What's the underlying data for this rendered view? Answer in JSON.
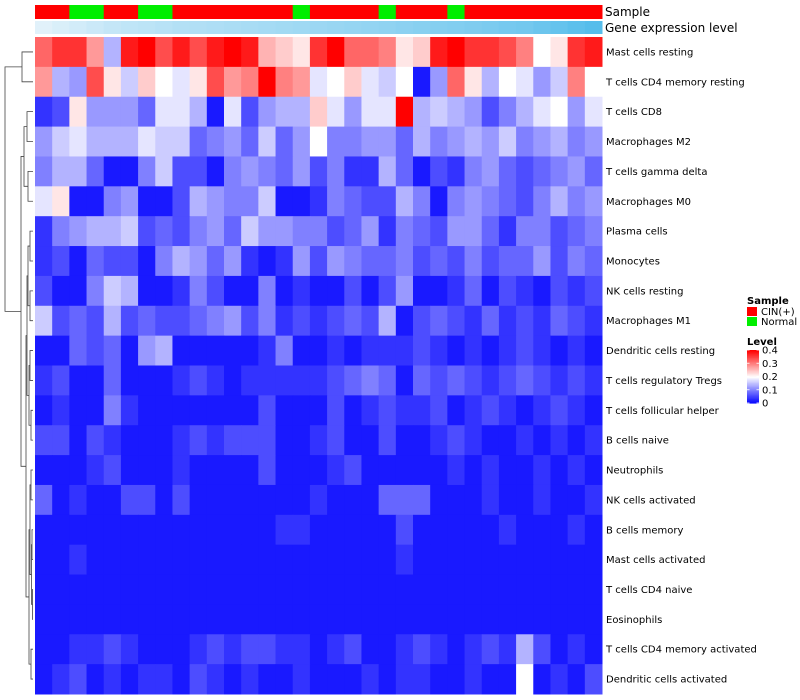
{
  "chart_data": {
    "type": "heatmap",
    "title": "",
    "annotation_labels": {
      "sample": "Sample",
      "gene_expression": "Gene expression level"
    },
    "sample_groups": [
      "CIN(+)",
      "CIN(+)",
      "Normal",
      "Normal",
      "CIN(+)",
      "CIN(+)",
      "Normal",
      "Normal",
      "CIN(+)",
      "CIN(+)",
      "CIN(+)",
      "CIN(+)",
      "CIN(+)",
      "CIN(+)",
      "CIN(+)",
      "Normal",
      "CIN(+)",
      "CIN(+)",
      "CIN(+)",
      "CIN(+)",
      "Normal",
      "CIN(+)",
      "CIN(+)",
      "CIN(+)",
      "Normal",
      "CIN(+)",
      "CIN(+)",
      "CIN(+)",
      "CIN(+)",
      "CIN(+)",
      "CIN(+)",
      "CIN(+)",
      "CIN(+)"
    ],
    "gene_expression_level": [
      0.05,
      0.1,
      0.15,
      0.2,
      0.25,
      0.28,
      0.3,
      0.33,
      0.36,
      0.38,
      0.4,
      0.42,
      0.44,
      0.46,
      0.48,
      0.5,
      0.52,
      0.54,
      0.56,
      0.58,
      0.6,
      0.63,
      0.66,
      0.68,
      0.7,
      0.72,
      0.75,
      0.78,
      0.8,
      0.85,
      0.9,
      0.95,
      1.0
    ],
    "rows": [
      "Mast cells resting",
      "T cells CD4 memory resting",
      "T cells CD8",
      "Macrophages M2",
      "T cells gamma delta",
      "Macrophages M0",
      "Plasma cells",
      "Monocytes",
      "NK cells resting",
      "Macrophages M1",
      "Dendritic cells resting",
      "T cells regulatory  Tregs",
      "T cells follicular helper",
      "B cells naive",
      "Neutrophils",
      "NK cells activated",
      "B cells memory",
      "Mast cells activated",
      "T cells CD4 naive",
      "Eosinophils",
      "T cells CD4 memory activated",
      "Dendritic cells activated"
    ],
    "values": [
      [
        0.32,
        0.36,
        0.36,
        0.28,
        0.14,
        0.38,
        0.4,
        0.34,
        0.38,
        0.34,
        0.38,
        0.4,
        0.38,
        0.26,
        0.24,
        0.22,
        0.36,
        0.4,
        0.32,
        0.32,
        0.3,
        0.22,
        0.24,
        0.38,
        0.4,
        0.36,
        0.36,
        0.34,
        0.3,
        0.2,
        0.22,
        0.36,
        0.38
      ],
      [
        0.28,
        0.14,
        0.12,
        0.34,
        0.22,
        0.16,
        0.24,
        0.2,
        0.18,
        0.22,
        0.34,
        0.28,
        0.3,
        0.4,
        0.3,
        0.28,
        0.18,
        0.2,
        0.24,
        0.18,
        0.16,
        0.2,
        0.02,
        0.12,
        0.32,
        0.22,
        0.14,
        0.2,
        0.18,
        0.12,
        0.16,
        0.3,
        0.2
      ],
      [
        0.04,
        0.06,
        0.22,
        0.12,
        0.12,
        0.12,
        0.08,
        0.18,
        0.18,
        0.14,
        0.02,
        0.18,
        0.06,
        0.12,
        0.14,
        0.14,
        0.24,
        0.18,
        0.12,
        0.18,
        0.18,
        0.4,
        0.14,
        0.16,
        0.14,
        0.12,
        0.06,
        0.1,
        0.14,
        0.18,
        0.2,
        0.12,
        0.18
      ],
      [
        0.12,
        0.16,
        0.18,
        0.14,
        0.14,
        0.14,
        0.18,
        0.16,
        0.16,
        0.08,
        0.1,
        0.12,
        0.08,
        0.16,
        0.08,
        0.12,
        0.2,
        0.1,
        0.1,
        0.12,
        0.12,
        0.08,
        0.14,
        0.1,
        0.12,
        0.14,
        0.12,
        0.16,
        0.1,
        0.12,
        0.14,
        0.1,
        0.12
      ],
      [
        0.1,
        0.14,
        0.14,
        0.08,
        0.02,
        0.02,
        0.1,
        0.16,
        0.06,
        0.06,
        0.02,
        0.1,
        0.12,
        0.1,
        0.08,
        0.12,
        0.06,
        0.1,
        0.04,
        0.04,
        0.14,
        0.08,
        0.02,
        0.06,
        0.04,
        0.1,
        0.12,
        0.08,
        0.06,
        0.08,
        0.1,
        0.12,
        0.08
      ],
      [
        0.18,
        0.22,
        0.02,
        0.02,
        0.1,
        0.12,
        0.02,
        0.02,
        0.06,
        0.14,
        0.12,
        0.1,
        0.1,
        0.16,
        0.02,
        0.02,
        0.04,
        0.1,
        0.08,
        0.06,
        0.06,
        0.14,
        0.1,
        0.02,
        0.1,
        0.12,
        0.1,
        0.08,
        0.06,
        0.1,
        0.14,
        0.1,
        0.12
      ],
      [
        0.04,
        0.1,
        0.12,
        0.14,
        0.14,
        0.16,
        0.06,
        0.08,
        0.06,
        0.1,
        0.12,
        0.08,
        0.16,
        0.12,
        0.12,
        0.1,
        0.1,
        0.06,
        0.08,
        0.12,
        0.04,
        0.1,
        0.08,
        0.06,
        0.12,
        0.12,
        0.08,
        0.04,
        0.1,
        0.1,
        0.06,
        0.08,
        0.1
      ],
      [
        0.04,
        0.06,
        0.02,
        0.08,
        0.06,
        0.06,
        0.02,
        0.1,
        0.14,
        0.12,
        0.08,
        0.12,
        0.04,
        0.02,
        0.04,
        0.12,
        0.06,
        0.12,
        0.1,
        0.08,
        0.08,
        0.1,
        0.06,
        0.08,
        0.06,
        0.1,
        0.06,
        0.08,
        0.08,
        0.12,
        0.06,
        0.1,
        0.08
      ],
      [
        0.06,
        0.02,
        0.02,
        0.1,
        0.16,
        0.14,
        0.02,
        0.02,
        0.04,
        0.1,
        0.06,
        0.02,
        0.02,
        0.1,
        0.02,
        0.04,
        0.02,
        0.02,
        0.06,
        0.02,
        0.06,
        0.12,
        0.02,
        0.02,
        0.04,
        0.08,
        0.02,
        0.06,
        0.04,
        0.02,
        0.06,
        0.04,
        0.06
      ],
      [
        0.16,
        0.06,
        0.08,
        0.06,
        0.14,
        0.06,
        0.08,
        0.06,
        0.06,
        0.08,
        0.1,
        0.12,
        0.06,
        0.1,
        0.04,
        0.06,
        0.04,
        0.06,
        0.08,
        0.06,
        0.14,
        0.02,
        0.06,
        0.08,
        0.06,
        0.04,
        0.08,
        0.04,
        0.06,
        0.04,
        0.08,
        0.06,
        0.04
      ],
      [
        0.02,
        0.02,
        0.08,
        0.06,
        0.08,
        0.02,
        0.12,
        0.14,
        0.02,
        0.02,
        0.02,
        0.02,
        0.02,
        0.04,
        0.1,
        0.02,
        0.02,
        0.04,
        0.02,
        0.04,
        0.04,
        0.04,
        0.06,
        0.04,
        0.02,
        0.04,
        0.02,
        0.04,
        0.06,
        0.04,
        0.02,
        0.04,
        0.02
      ],
      [
        0.04,
        0.06,
        0.02,
        0.02,
        0.08,
        0.02,
        0.02,
        0.02,
        0.04,
        0.06,
        0.04,
        0.02,
        0.04,
        0.04,
        0.04,
        0.04,
        0.04,
        0.06,
        0.08,
        0.1,
        0.08,
        0.02,
        0.08,
        0.06,
        0.08,
        0.06,
        0.04,
        0.06,
        0.08,
        0.06,
        0.04,
        0.06,
        0.04
      ],
      [
        0.02,
        0.04,
        0.02,
        0.02,
        0.1,
        0.04,
        0.02,
        0.02,
        0.02,
        0.02,
        0.02,
        0.02,
        0.02,
        0.06,
        0.02,
        0.02,
        0.02,
        0.06,
        0.02,
        0.04,
        0.06,
        0.04,
        0.04,
        0.06,
        0.02,
        0.04,
        0.06,
        0.04,
        0.02,
        0.04,
        0.06,
        0.04,
        0.02
      ],
      [
        0.06,
        0.06,
        0.02,
        0.06,
        0.04,
        0.02,
        0.02,
        0.02,
        0.04,
        0.06,
        0.04,
        0.06,
        0.06,
        0.06,
        0.02,
        0.02,
        0.04,
        0.06,
        0.02,
        0.02,
        0.06,
        0.02,
        0.02,
        0.04,
        0.06,
        0.04,
        0.02,
        0.02,
        0.04,
        0.02,
        0.04,
        0.02,
        0.04
      ],
      [
        0.02,
        0.02,
        0.02,
        0.04,
        0.06,
        0.02,
        0.02,
        0.02,
        0.04,
        0.02,
        0.02,
        0.02,
        0.02,
        0.06,
        0.02,
        0.02,
        0.02,
        0.04,
        0.06,
        0.02,
        0.02,
        0.02,
        0.02,
        0.02,
        0.04,
        0.02,
        0.04,
        0.02,
        0.02,
        0.04,
        0.02,
        0.04,
        0.02
      ],
      [
        0.08,
        0.02,
        0.04,
        0.02,
        0.02,
        0.06,
        0.06,
        0.02,
        0.06,
        0.02,
        0.02,
        0.02,
        0.02,
        0.02,
        0.02,
        0.02,
        0.04,
        0.02,
        0.02,
        0.02,
        0.08,
        0.08,
        0.08,
        0.02,
        0.02,
        0.02,
        0.04,
        0.02,
        0.02,
        0.04,
        0.02,
        0.02,
        0.04
      ],
      [
        0.02,
        0.02,
        0.02,
        0.02,
        0.02,
        0.02,
        0.02,
        0.02,
        0.02,
        0.02,
        0.02,
        0.02,
        0.02,
        0.02,
        0.04,
        0.04,
        0.02,
        0.02,
        0.02,
        0.02,
        0.02,
        0.06,
        0.02,
        0.02,
        0.02,
        0.02,
        0.02,
        0.04,
        0.02,
        0.02,
        0.02,
        0.04,
        0.02
      ],
      [
        0.02,
        0.02,
        0.04,
        0.02,
        0.02,
        0.02,
        0.02,
        0.02,
        0.02,
        0.02,
        0.02,
        0.02,
        0.02,
        0.02,
        0.02,
        0.02,
        0.02,
        0.02,
        0.02,
        0.02,
        0.02,
        0.04,
        0.02,
        0.02,
        0.02,
        0.02,
        0.02,
        0.02,
        0.02,
        0.02,
        0.02,
        0.02,
        0.02
      ],
      [
        0.02,
        0.02,
        0.02,
        0.02,
        0.02,
        0.02,
        0.02,
        0.02,
        0.02,
        0.02,
        0.02,
        0.02,
        0.02,
        0.02,
        0.02,
        0.02,
        0.02,
        0.02,
        0.02,
        0.02,
        0.02,
        0.02,
        0.02,
        0.02,
        0.02,
        0.02,
        0.02,
        0.02,
        0.02,
        0.02,
        0.02,
        0.02,
        0.02
      ],
      [
        0.02,
        0.02,
        0.02,
        0.02,
        0.02,
        0.02,
        0.02,
        0.02,
        0.02,
        0.02,
        0.02,
        0.02,
        0.02,
        0.02,
        0.02,
        0.02,
        0.02,
        0.02,
        0.02,
        0.02,
        0.02,
        0.02,
        0.02,
        0.02,
        0.02,
        0.02,
        0.02,
        0.02,
        0.02,
        0.02,
        0.02,
        0.02,
        0.02
      ],
      [
        0.02,
        0.02,
        0.04,
        0.04,
        0.06,
        0.04,
        0.02,
        0.02,
        0.02,
        0.04,
        0.06,
        0.04,
        0.06,
        0.06,
        0.04,
        0.04,
        0.02,
        0.04,
        0.06,
        0.02,
        0.02,
        0.04,
        0.06,
        0.04,
        0.02,
        0.04,
        0.06,
        0.04,
        0.14,
        0.06,
        0.02,
        0.04,
        0.02
      ],
      [
        0.02,
        0.04,
        0.06,
        0.02,
        0.04,
        0.02,
        0.04,
        0.04,
        0.02,
        0.06,
        0.04,
        0.02,
        0.04,
        0.02,
        0.02,
        0.04,
        0.02,
        0.02,
        0.02,
        0.04,
        0.02,
        0.04,
        0.04,
        0.02,
        0.02,
        0.04,
        0.02,
        0.02,
        0.2,
        0.02,
        0.04,
        0.02,
        0.06
      ]
    ],
    "scale": {
      "min": 0,
      "max": 0.4,
      "low": "#0000FF",
      "mid": "#FFFFFF",
      "high": "#FF0000"
    },
    "legend": {
      "sample_title": "Sample",
      "sample_items": [
        {
          "label": "CIN(+)",
          "color": "#FF0000"
        },
        {
          "label": "Normal",
          "color": "#00EE00"
        }
      ],
      "level_title": "Level",
      "level_ticks": [
        "0.4",
        "0.3",
        "0.2",
        "0.1",
        "0"
      ],
      "level_tick_values": [
        0.4,
        0.3,
        0.2,
        0.1,
        0
      ]
    },
    "expression_colors": {
      "low": "#E8F4FB",
      "high": "#56BDEB"
    },
    "dendrogram": "row clustering tree (left)"
  }
}
